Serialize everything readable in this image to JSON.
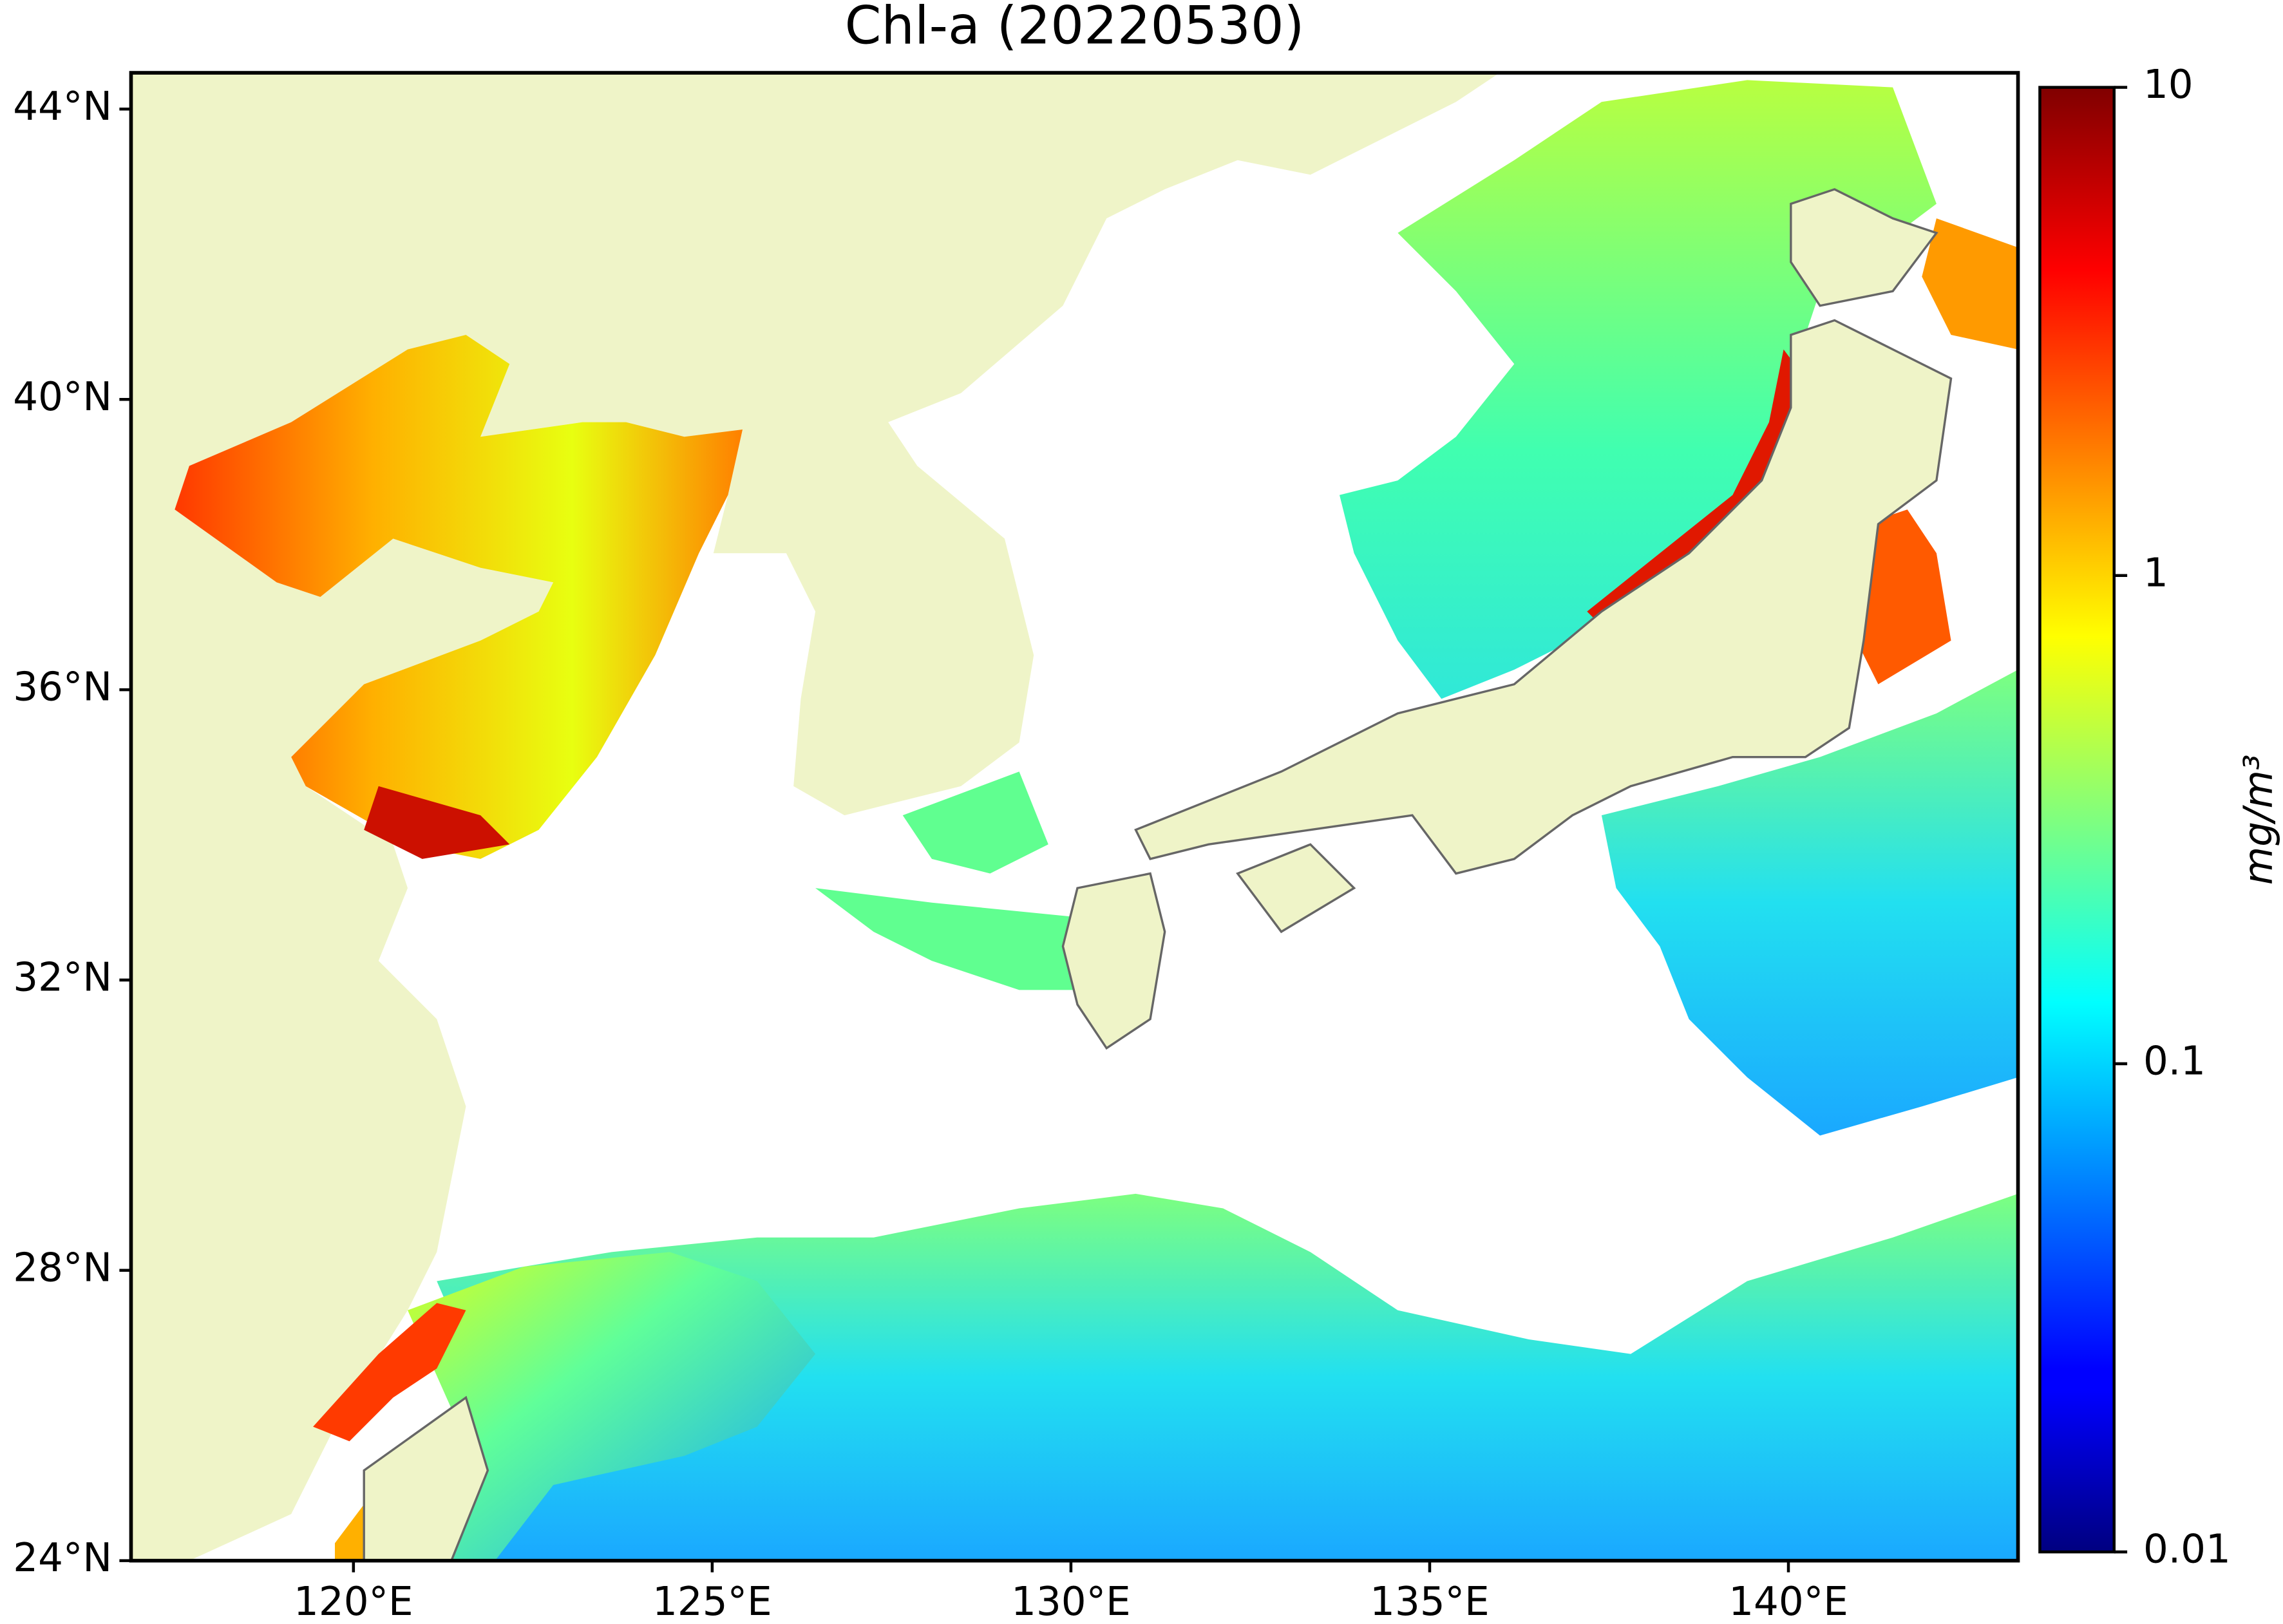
{
  "chart_data": {
    "type": "map",
    "title": "Chl-a (20220530)",
    "xlim": [
      116.9,
      143.2
    ],
    "ylim": [
      24,
      44.5
    ],
    "xticks": [
      {
        "value": 120,
        "label": "120°E"
      },
      {
        "value": 125,
        "label": "125°E"
      },
      {
        "value": 130,
        "label": "130°E"
      },
      {
        "value": 135,
        "label": "135°E"
      },
      {
        "value": 140,
        "label": "140°E"
      }
    ],
    "yticks": [
      {
        "value": 24,
        "label": "24°N"
      },
      {
        "value": 28,
        "label": "28°N"
      },
      {
        "value": 32,
        "label": "32°N"
      },
      {
        "value": 36,
        "label": "36°N"
      },
      {
        "value": 40,
        "label": "40°N"
      },
      {
        "value": 44,
        "label": "44°N"
      }
    ],
    "land_color": "#eff4c8",
    "colorbar": {
      "label": "mg/m³",
      "scale": "log",
      "lim": [
        0.01,
        10
      ],
      "ticks": [
        0.01,
        0.1,
        1,
        10
      ],
      "colormap": "jet"
    }
  }
}
